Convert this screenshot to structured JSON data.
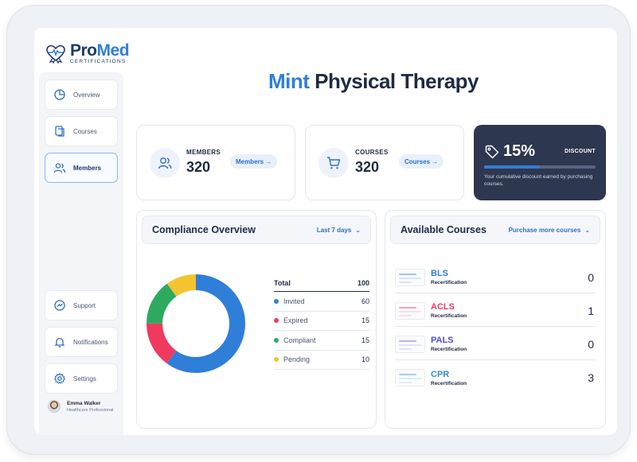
{
  "brand": {
    "name_part1": "Pro",
    "name_part2": "Med",
    "subtitle": "CERTIFICATIONS"
  },
  "sidebar": {
    "items": [
      {
        "label": "Overview",
        "icon": "pie-chart-icon"
      },
      {
        "label": "Courses",
        "icon": "documents-icon"
      },
      {
        "label": "Members",
        "icon": "users-icon"
      },
      {
        "label": "Support",
        "icon": "support-icon"
      },
      {
        "label": "Notifications",
        "icon": "bell-icon"
      },
      {
        "label": "Settings",
        "icon": "gear-icon"
      }
    ],
    "active": "Members",
    "user": {
      "name": "Emma Walker",
      "role": "Healthcare Professional"
    }
  },
  "header": {
    "title_highlight": "Mint",
    "title_rest": "Physical Therapy"
  },
  "stats": {
    "members": {
      "label": "MEMBERS",
      "value": "320",
      "link": "Members →"
    },
    "courses": {
      "label": "COURSES",
      "value": "320",
      "link": "Courses →"
    },
    "discount": {
      "value": "15%",
      "label": "DISCOUNT",
      "progress": 0.5,
      "description": "Your cumulative discount earned by purchasing courses."
    }
  },
  "compliance": {
    "title": "Compliance Overview",
    "filter": "Last 7 days",
    "total_label": "Total",
    "total_value": "100",
    "segments": [
      {
        "label": "Invited",
        "value": 60,
        "color": "#2f7ed8"
      },
      {
        "label": "Expired",
        "value": 15,
        "color": "#f0395f"
      },
      {
        "label": "Compliant",
        "value": 15,
        "color": "#2eaa60"
      },
      {
        "label": "Pending",
        "value": 10,
        "color": "#f4c430"
      }
    ]
  },
  "courses_panel": {
    "title": "Available Courses",
    "link": "Purchase more courses",
    "items": [
      {
        "name": "BLS",
        "sub": "Recertification",
        "count": "0",
        "color": "#2f7ed8"
      },
      {
        "name": "ACLS",
        "sub": "Recertification",
        "count": "1",
        "color": "#f0395f"
      },
      {
        "name": "PALS",
        "sub": "Recertification",
        "count": "0",
        "color": "#4a4fd8"
      },
      {
        "name": "CPR",
        "sub": "Recertification",
        "count": "3",
        "color": "#2f8ed8"
      }
    ]
  },
  "colors": {
    "accent": "#2f7ed8",
    "dark_card": "#2e3750"
  }
}
